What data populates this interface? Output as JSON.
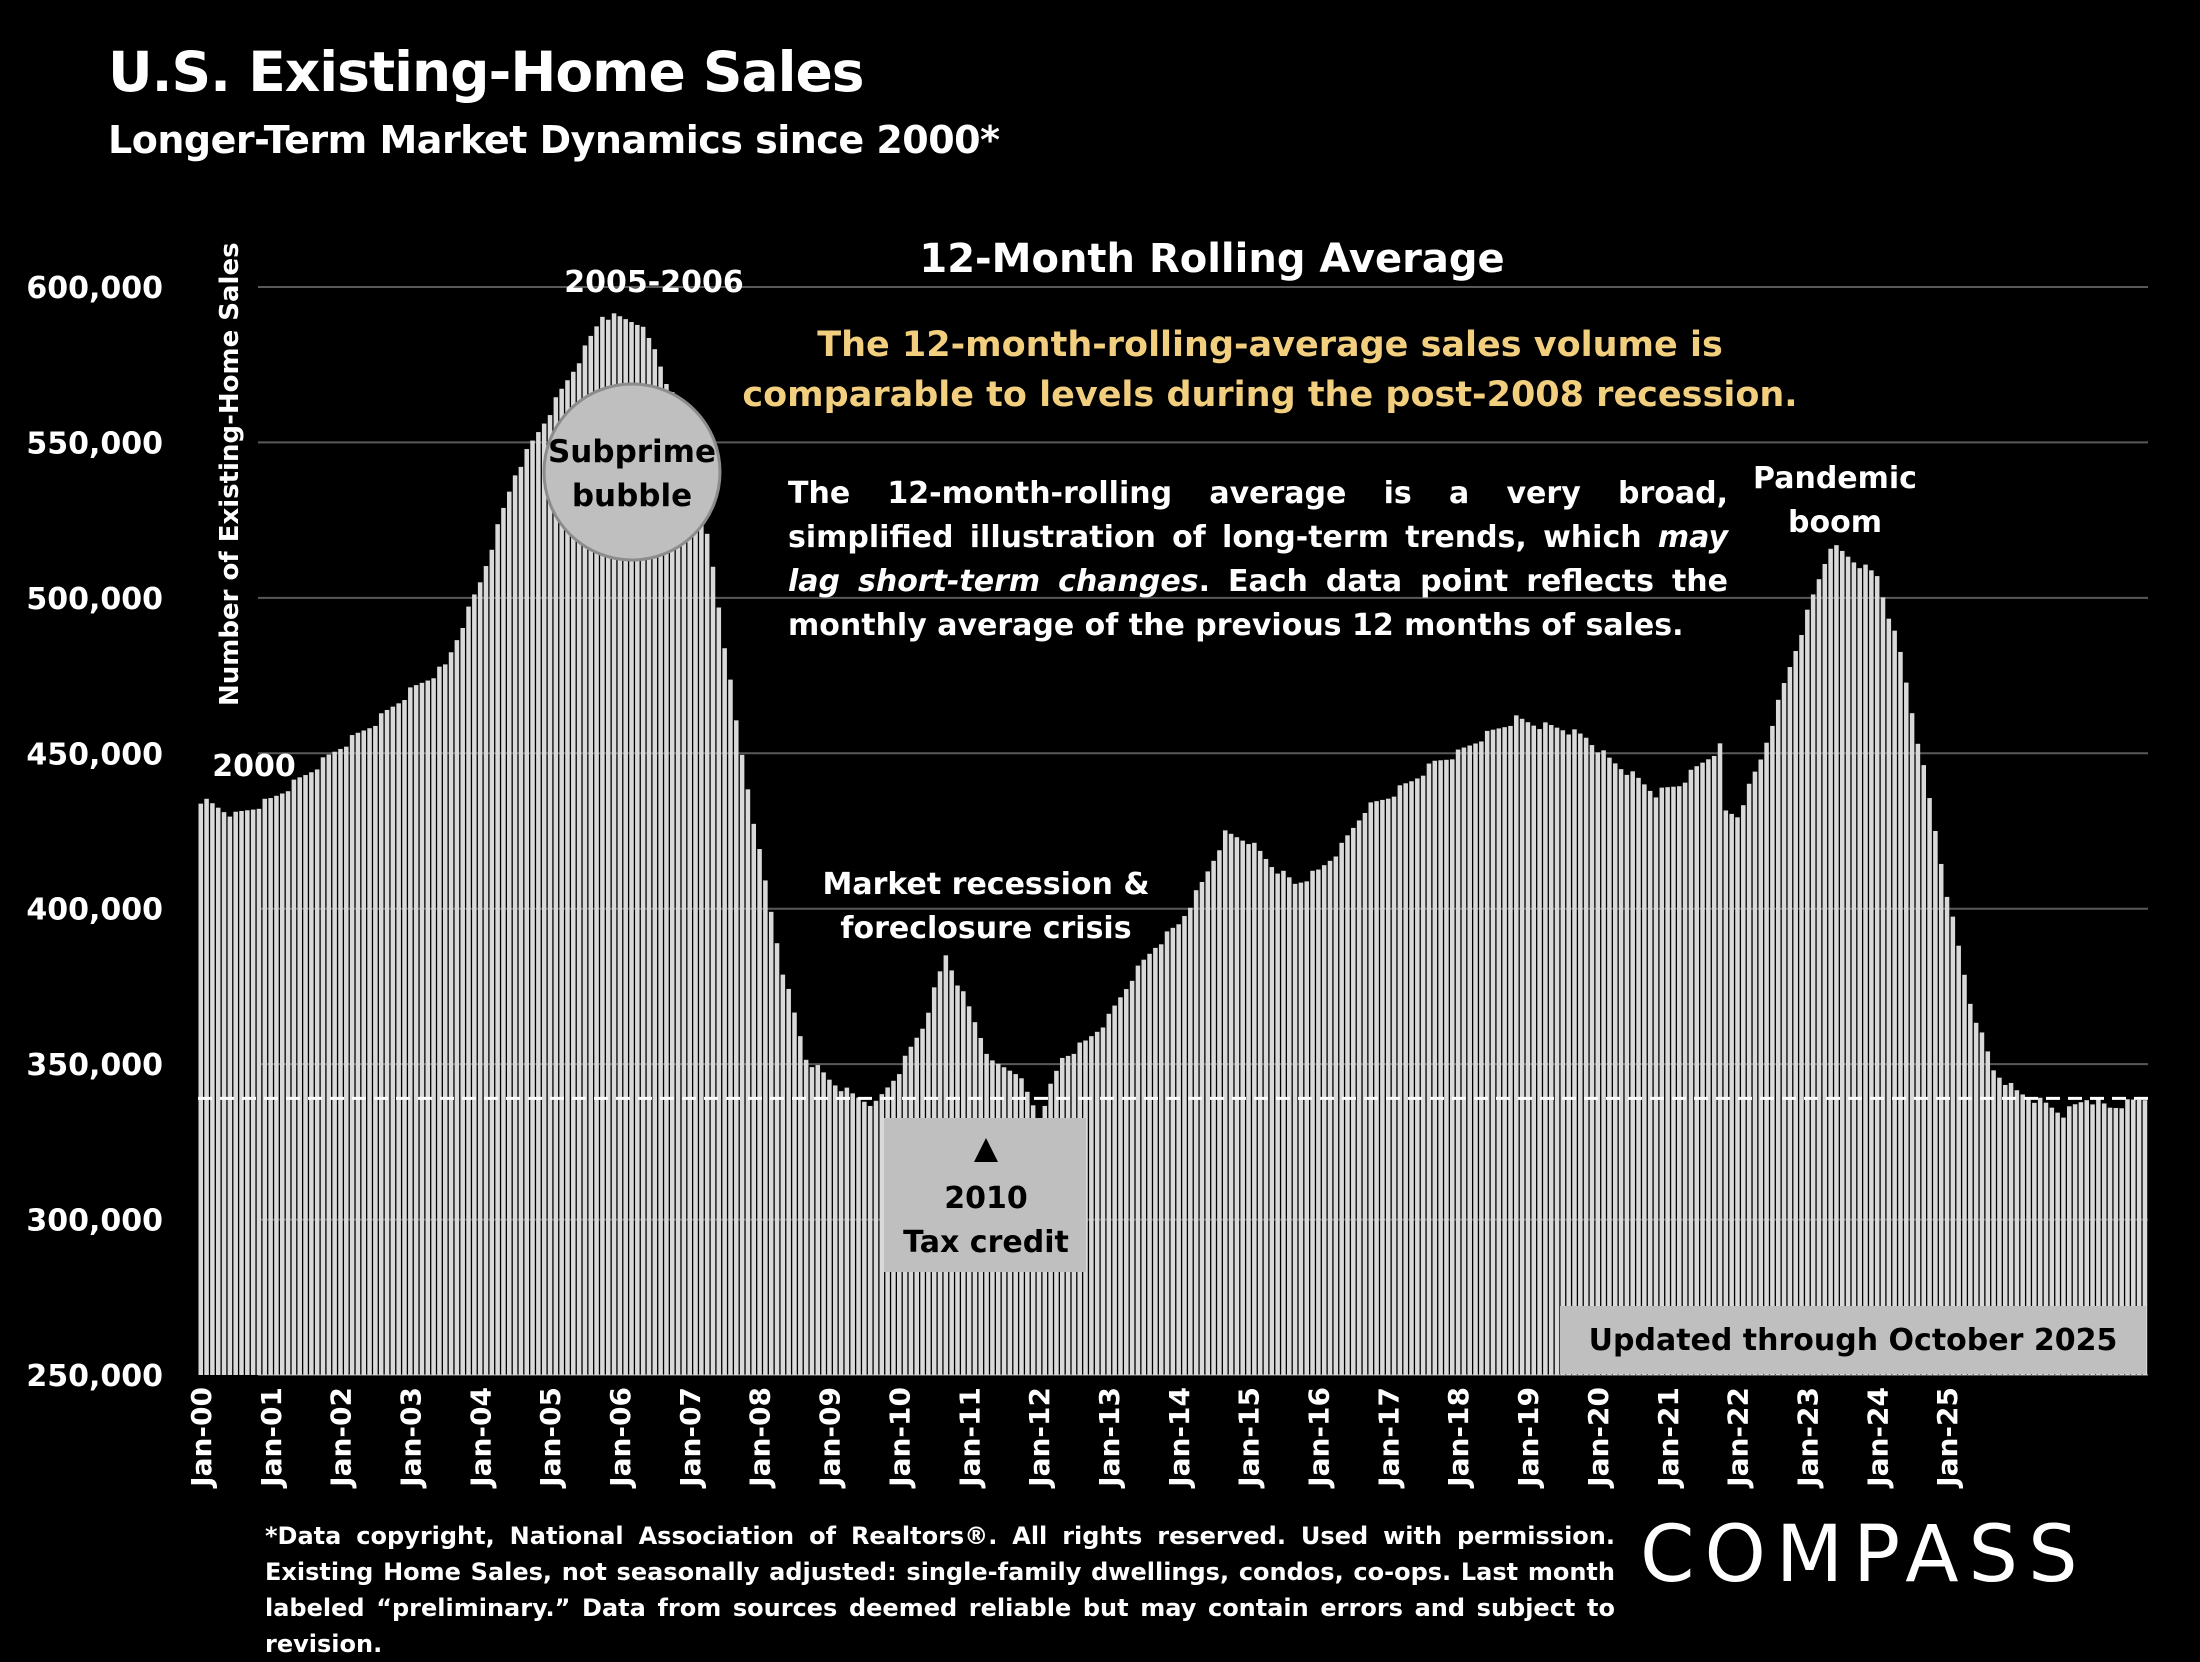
{
  "header": {
    "title": "U.S. Existing-Home Sales",
    "subtitle": "Longer-Term Market Dynamics since 2000*"
  },
  "callout": {
    "headline": "The 12-month-rolling-average sales volume is comparable to levels during the post-2008 recession.",
    "note_part1": "The 12-month-rolling average is a very broad, simplified illustration of long-term trends, which ",
    "note_italic": "may lag short-term changes",
    "note_part2": ". Each data point reflects the monthly average of the previous 12 months of sales."
  },
  "footnote": "*Data copyright, National Association of Realtors®. All rights reserved. Used with permission. Existing Home Sales, not seasonally adjusted: single-family dwellings, condos, co-ops. Last month labeled “preliminary.” Data from sources deemed reliable but may contain errors and subject to revision.",
  "brand": {
    "logo_text": "COMPASS"
  },
  "colors": {
    "background": "#000000",
    "bar": "#d9d9d9",
    "highlight": "#f2cf7e",
    "grid": "#595959"
  },
  "chart_data": {
    "type": "bar",
    "title": "12-Month Rolling Average",
    "ylabel": "Number of Existing-Home Sales",
    "xlabel": "",
    "ylim": [
      250000,
      600000
    ],
    "yticks": [
      250000,
      300000,
      350000,
      400000,
      450000,
      500000,
      550000,
      600000
    ],
    "ytick_labels": [
      "250,000",
      "300,000",
      "350,000",
      "400,000",
      "450,000",
      "500,000",
      "550,000",
      "600,000"
    ],
    "xtick_labels": [
      "Jan-00",
      "Jan-01",
      "Jan-02",
      "Jan-03",
      "Jan-04",
      "Jan-05",
      "Jan-06",
      "Jan-07",
      "Jan-08",
      "Jan-09",
      "Jan-10",
      "Jan-11",
      "Jan-12",
      "Jan-13",
      "Jan-14",
      "Jan-15",
      "Jan-16",
      "Jan-17",
      "Jan-18",
      "Jan-19",
      "Jan-20",
      "Jan-21",
      "Jan-22",
      "Jan-23",
      "Jan-24",
      "Jan-25"
    ],
    "start_month": "Jan-00",
    "end_month": "Oct-25",
    "reference_line": {
      "value": 339000,
      "style": "dashed"
    },
    "keypoints": [
      [
        0,
        435000
      ],
      [
        6,
        430000
      ],
      [
        12,
        435000
      ],
      [
        18,
        443000
      ],
      [
        24,
        452000
      ],
      [
        30,
        460000
      ],
      [
        36,
        470000
      ],
      [
        42,
        478000
      ],
      [
        48,
        505000
      ],
      [
        54,
        540000
      ],
      [
        60,
        560000
      ],
      [
        66,
        580000
      ],
      [
        69,
        591000
      ],
      [
        75,
        589000
      ],
      [
        78,
        580000
      ],
      [
        84,
        550000
      ],
      [
        88,
        510000
      ],
      [
        92,
        460000
      ],
      [
        96,
        418000
      ],
      [
        100,
        380000
      ],
      [
        104,
        352000
      ],
      [
        108,
        345000
      ],
      [
        112,
        340000
      ],
      [
        116,
        337000
      ],
      [
        120,
        348000
      ],
      [
        124,
        362000
      ],
      [
        128,
        385000
      ],
      [
        132,
        368000
      ],
      [
        136,
        350000
      ],
      [
        140,
        348000
      ],
      [
        144,
        333000
      ],
      [
        148,
        352000
      ],
      [
        152,
        357000
      ],
      [
        156,
        365000
      ],
      [
        160,
        378000
      ],
      [
        164,
        388000
      ],
      [
        168,
        395000
      ],
      [
        172,
        408000
      ],
      [
        176,
        424000
      ],
      [
        180,
        422000
      ],
      [
        184,
        414000
      ],
      [
        188,
        408000
      ],
      [
        192,
        412000
      ],
      [
        196,
        420000
      ],
      [
        200,
        432000
      ],
      [
        204,
        436000
      ],
      [
        208,
        441000
      ],
      [
        212,
        447000
      ],
      [
        216,
        450000
      ],
      [
        220,
        455000
      ],
      [
        224,
        459000
      ],
      [
        226,
        461000
      ],
      [
        230,
        459000
      ],
      [
        234,
        458000
      ],
      [
        238,
        455000
      ],
      [
        242,
        448000
      ],
      [
        246,
        443000
      ],
      [
        250,
        437000
      ],
      [
        254,
        440000
      ],
      [
        258,
        447000
      ],
      [
        261,
        452000
      ],
      [
        262,
        431000
      ],
      [
        264,
        430000
      ],
      [
        268,
        448000
      ],
      [
        272,
        472000
      ],
      [
        276,
        495000
      ],
      [
        280,
        517000
      ],
      [
        284,
        512000
      ],
      [
        288,
        507000
      ],
      [
        292,
        482000
      ],
      [
        296,
        445000
      ],
      [
        300,
        405000
      ],
      [
        304,
        370000
      ],
      [
        308,
        348000
      ],
      [
        312,
        341000
      ],
      [
        316,
        338000
      ],
      [
        320,
        334000
      ],
      [
        324,
        339000
      ],
      [
        328,
        336000
      ],
      [
        332,
        338000
      ],
      [
        334,
        339000
      ]
    ],
    "annotations": [
      {
        "id": "2000",
        "text": "2000"
      },
      {
        "id": "peak",
        "text": "2005-2006"
      },
      {
        "id": "bubble",
        "text": "Subprime bubble"
      },
      {
        "id": "recession",
        "text": "Market recession & foreclosure crisis"
      },
      {
        "id": "taxcredit",
        "text": "2010 Tax credit"
      },
      {
        "id": "pandemic",
        "text": "Pandemic boom"
      },
      {
        "id": "updated",
        "text": "Updated through October 2025"
      }
    ]
  }
}
